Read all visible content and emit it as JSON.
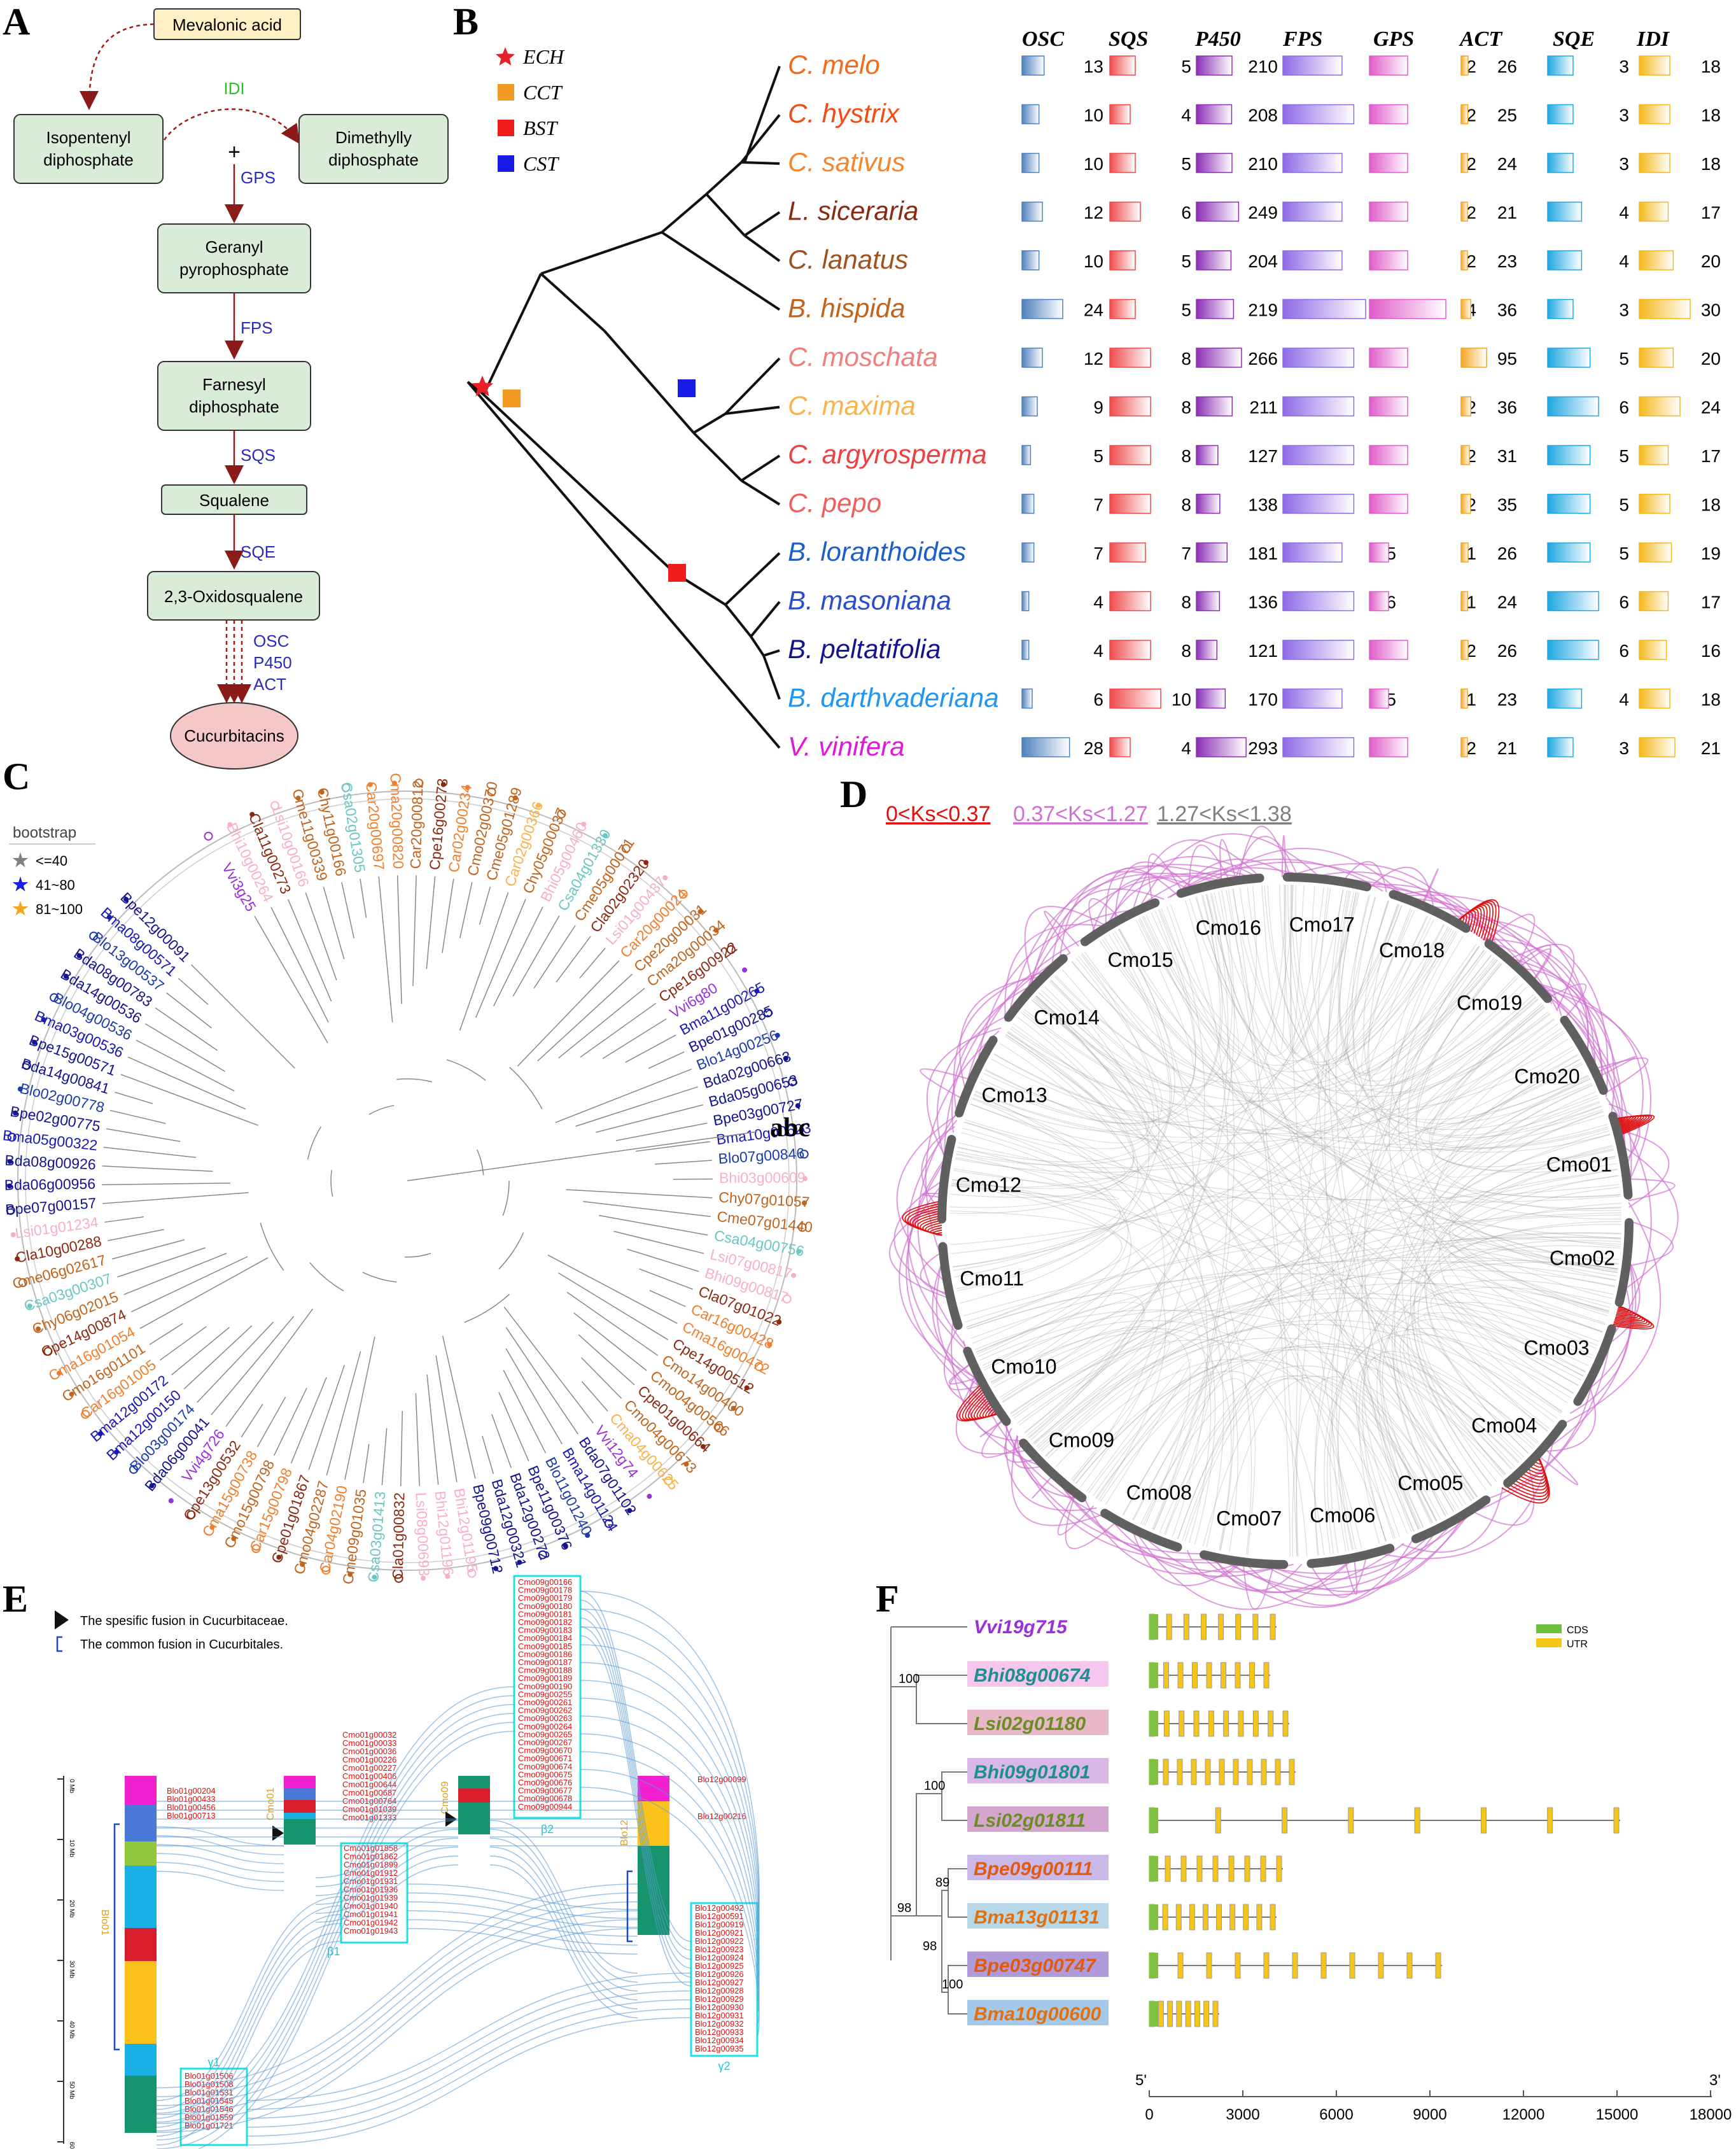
{
  "panels": {
    "A": {
      "letter": "A",
      "start": "Mevalonic acid",
      "ipp": "Isopentenyl diphosphate",
      "ipp_lines": [
        "Isopentenyl",
        "diphosphate"
      ],
      "dmapp_lines": [
        "Dimethylly",
        "diphosphate"
      ],
      "idi": "IDI",
      "plus": "+",
      "gps": "GPS",
      "gpp_lines": [
        "Geranyl",
        "pyrophosphate"
      ],
      "fps": "FPS",
      "fpp_lines": [
        "Farnesyl",
        "diphosphate"
      ],
      "sqs": "SQS",
      "squalene": "Squalene",
      "sqe": "SQE",
      "oxido": "2,3-Oxidosqualene",
      "enzymes_last": [
        "OSC",
        "P450",
        "ACT"
      ],
      "end": "Cucurbitacins"
    },
    "B": {
      "letter": "B",
      "legend": [
        {
          "label": "ECH",
          "color": "#e8202a",
          "shape": "star"
        },
        {
          "label": "CCT",
          "color": "#f39a24",
          "shape": "square"
        },
        {
          "label": "BST",
          "color": "#ee1c1c",
          "shape": "square"
        },
        {
          "label": "CST",
          "color": "#1a1ae6",
          "shape": "square"
        }
      ],
      "columns": [
        "OSC",
        "SQS",
        "P450",
        "FPS",
        "GPS",
        "ACT",
        "SQE",
        "IDI"
      ],
      "column_colors": [
        "#4f81bd",
        "#f04a4a",
        "#8b2fb5",
        "#8d6ae6",
        "#e05bc9",
        "#f5a623",
        "#1ea7e1",
        "#f5b81c"
      ],
      "species": [
        {
          "name": "C. melo",
          "color": "#f26a1b",
          "values": [
            13,
            5,
            210,
            5,
            2,
            26,
            3,
            18
          ]
        },
        {
          "name": "C. hystrix",
          "color": "#f04e16",
          "values": [
            10,
            4,
            208,
            6,
            2,
            25,
            3,
            18
          ]
        },
        {
          "name": "C. sativus",
          "color": "#f4862b",
          "values": [
            10,
            5,
            210,
            5,
            2,
            24,
            3,
            18
          ]
        },
        {
          "name": "L. siceraria",
          "color": "#8b2a12",
          "values": [
            12,
            6,
            249,
            5,
            2,
            21,
            4,
            17
          ]
        },
        {
          "name": "C. lanatus",
          "color": "#a0521c",
          "values": [
            10,
            5,
            204,
            5,
            2,
            23,
            4,
            20
          ]
        },
        {
          "name": "B. hispida",
          "color": "#c0641e",
          "values": [
            24,
            5,
            219,
            7,
            4,
            36,
            3,
            30
          ]
        },
        {
          "name": "C. moschata",
          "color": "#f08080",
          "values": [
            12,
            8,
            266,
            6,
            2,
            95,
            5,
            20
          ]
        },
        {
          "name": "C. maxima",
          "color": "#f9b24c",
          "values": [
            9,
            8,
            211,
            6,
            2,
            36,
            6,
            24
          ]
        },
        {
          "name": "C. argyrosperma",
          "color": "#ee4040",
          "values": [
            5,
            8,
            127,
            6,
            2,
            31,
            5,
            17
          ]
        },
        {
          "name": "C. pepo",
          "color": "#f05f5f",
          "values": [
            7,
            8,
            138,
            6,
            2,
            35,
            5,
            18
          ]
        },
        {
          "name": "B. loranthoides",
          "color": "#1c5fc8",
          "values": [
            7,
            7,
            181,
            5,
            1,
            26,
            5,
            19
          ]
        },
        {
          "name": "B. masoniana",
          "color": "#2a4ed0",
          "values": [
            4,
            8,
            136,
            6,
            1,
            24,
            6,
            17
          ]
        },
        {
          "name": "B. peltatifolia",
          "color": "#14148e",
          "values": [
            4,
            8,
            121,
            6,
            2,
            26,
            6,
            16
          ]
        },
        {
          "name": "B. darthvaderiana",
          "color": "#2196f3",
          "values": [
            6,
            10,
            170,
            5,
            1,
            23,
            4,
            18
          ]
        },
        {
          "name": "V. vinifera",
          "color": "#e019d8",
          "values": [
            28,
            4,
            293,
            6,
            2,
            21,
            3,
            21
          ]
        }
      ]
    },
    "C": {
      "letter": "C",
      "legend_title": "bootstrap",
      "legend": [
        {
          "label": "<=40",
          "color": "#808080"
        },
        {
          "label": "41~80",
          "color": "#1a1ae6"
        },
        {
          "label": "81~100",
          "color": "#f5a623"
        }
      ],
      "corner_label": "abc",
      "genes": [
        {
          "id": "Vvi3g25",
          "color": "#9b30d9"
        },
        {
          "id": "Bhi10g00264",
          "color": "#f7b0c8"
        },
        {
          "id": "Cla11g00273",
          "color": "#8b2a12"
        },
        {
          "id": "Lsi10g00166",
          "color": "#f7b0c8"
        },
        {
          "id": "Cme11g00339",
          "color": "#c0641e"
        },
        {
          "id": "Chy11g00166",
          "color": "#c0641e"
        },
        {
          "id": "Csa02g01305",
          "color": "#6cc6c6"
        },
        {
          "id": "Car20g00697",
          "color": "#f08030"
        },
        {
          "id": "Cma20g00820",
          "color": "#f08030"
        },
        {
          "id": "Car20g00812",
          "color": "#c0641e"
        },
        {
          "id": "Cpe16g00273",
          "color": "#8b2a12"
        },
        {
          "id": "Car02g00234",
          "color": "#f08030"
        },
        {
          "id": "Cmo02g00370",
          "color": "#c0641e"
        },
        {
          "id": "Cme05g01289",
          "color": "#c0641e"
        },
        {
          "id": "Car02g00366",
          "color": "#f9b24c"
        },
        {
          "id": "Chy05g00037",
          "color": "#c0641e"
        },
        {
          "id": "Bhi05g00460",
          "color": "#f7b0c8"
        },
        {
          "id": "Csa04g01330",
          "color": "#6cc6c6"
        },
        {
          "id": "Cme05g00071",
          "color": "#c0641e"
        },
        {
          "id": "Cla02g02320",
          "color": "#8b2a12"
        },
        {
          "id": "Lsi01g00437",
          "color": "#f7b0c8"
        },
        {
          "id": "Car20g00024",
          "color": "#f08030"
        },
        {
          "id": "Cpe20g00031",
          "color": "#c0641e"
        },
        {
          "id": "Cma20g00034",
          "color": "#c0641e"
        },
        {
          "id": "Cpe16g00922",
          "color": "#8b2a12"
        },
        {
          "id": "Vvi6g80",
          "color": "#9b30d9"
        },
        {
          "id": "Bma11g00265",
          "color": "#1a1ab0"
        },
        {
          "id": "Bpe01g00285",
          "color": "#14148e"
        },
        {
          "id": "Blo14g00256",
          "color": "#1c3ca8"
        },
        {
          "id": "Bda02g00663",
          "color": "#14148e"
        },
        {
          "id": "Bda05g00653",
          "color": "#14148e"
        },
        {
          "id": "Bpe03g00727",
          "color": "#14148e"
        },
        {
          "id": "Bma10g00623",
          "color": "#1a1ab0"
        },
        {
          "id": "Blo07g00846",
          "color": "#1c3ca8"
        },
        {
          "id": "Bhi03g00609",
          "color": "#f7b0c8"
        },
        {
          "id": "Chy07g01057",
          "color": "#c0641e"
        },
        {
          "id": "Cme07g01440",
          "color": "#c0641e"
        },
        {
          "id": "Csa04g00756",
          "color": "#6cc6c6"
        },
        {
          "id": "Lsi07g00817",
          "color": "#f7b0c8"
        },
        {
          "id": "Bhi09g00817",
          "color": "#f7b0c8"
        },
        {
          "id": "Cla07g01022",
          "color": "#8b2a12"
        },
        {
          "id": "Car16g00428",
          "color": "#f08030"
        },
        {
          "id": "Cma16g00472",
          "color": "#f08030"
        },
        {
          "id": "Cpe14g00512",
          "color": "#8b2a12"
        },
        {
          "id": "Cmo14g00400",
          "color": "#c0641e"
        },
        {
          "id": "Cmo04g00566",
          "color": "#c0641e"
        },
        {
          "id": "Cpe01g00664",
          "color": "#8b2a12"
        },
        {
          "id": "Cmo04g00673",
          "color": "#c0641e"
        },
        {
          "id": "Cma04g00625",
          "color": "#f9b24c"
        },
        {
          "id": "Vvi12g74",
          "color": "#9b30d9"
        },
        {
          "id": "Bda07g01102",
          "color": "#14148e"
        },
        {
          "id": "Bma14g01124",
          "color": "#1a1ab0"
        },
        {
          "id": "Blo11g01240",
          "color": "#1c3ca8"
        },
        {
          "id": "Bpe11g00376",
          "color": "#14148e"
        },
        {
          "id": "Bda12g00272",
          "color": "#14148e"
        },
        {
          "id": "Bda12g00321",
          "color": "#14148e"
        },
        {
          "id": "Bpe09g00712",
          "color": "#14148e"
        },
        {
          "id": "Bhi12g01195",
          "color": "#f7b0c8"
        },
        {
          "id": "Bhi12g01196",
          "color": "#f7b0c8"
        },
        {
          "id": "Lsi08g00693",
          "color": "#f7b0c8"
        },
        {
          "id": "Cla01g00832",
          "color": "#8b2a12"
        },
        {
          "id": "Csa03g01413",
          "color": "#6cc6c6"
        },
        {
          "id": "Cme09g01035",
          "color": "#c0641e"
        },
        {
          "id": "Car04g02190",
          "color": "#f08030"
        },
        {
          "id": "Cmo04g02287",
          "color": "#c0641e"
        },
        {
          "id": "Cpe01g01867",
          "color": "#8b2a12"
        },
        {
          "id": "Car15g00798",
          "color": "#f08030"
        },
        {
          "id": "Cmo15g00798",
          "color": "#c0641e"
        },
        {
          "id": "Cma15g00738",
          "color": "#f08030"
        },
        {
          "id": "Cpe13g00532",
          "color": "#8b2a12"
        },
        {
          "id": "Vvi4g726",
          "color": "#9b30d9"
        },
        {
          "id": "Bda06g00041",
          "color": "#14148e"
        },
        {
          "id": "Blo03g00174",
          "color": "#1c3ca8"
        },
        {
          "id": "Bma12g00150",
          "color": "#1a1ab0"
        },
        {
          "id": "Bma12g00172",
          "color": "#1a1ab0"
        },
        {
          "id": "Car16g01005",
          "color": "#f08030"
        },
        {
          "id": "Cmo16g01101",
          "color": "#c0641e"
        },
        {
          "id": "Cma16g01054",
          "color": "#f08030"
        },
        {
          "id": "Cpe14g00874",
          "color": "#8b2a12"
        },
        {
          "id": "Chy06g02015",
          "color": "#c0641e"
        },
        {
          "id": "Csa03g00307",
          "color": "#6cc6c6"
        },
        {
          "id": "Cme06g02617",
          "color": "#c0641e"
        },
        {
          "id": "Cla10g00288",
          "color": "#8b2a12"
        },
        {
          "id": "Lsi01g01234",
          "color": "#f7b0c8"
        },
        {
          "id": "Bpe07g00157",
          "color": "#14148e"
        },
        {
          "id": "Bda06g00956",
          "color": "#14148e"
        },
        {
          "id": "Bda08g00926",
          "color": "#14148e"
        },
        {
          "id": "Bma05g00322",
          "color": "#1a1ab0"
        },
        {
          "id": "Bpe02g00775",
          "color": "#14148e"
        },
        {
          "id": "Blo02g00778",
          "color": "#1c3ca8"
        },
        {
          "id": "Bda14g00841",
          "color": "#14148e"
        },
        {
          "id": "Bpe15g00571",
          "color": "#14148e"
        },
        {
          "id": "Bma03g00536",
          "color": "#1a1ab0"
        },
        {
          "id": "Blo04g00536",
          "color": "#1c3ca8"
        },
        {
          "id": "Bda14g00536",
          "color": "#14148e"
        },
        {
          "id": "Bda08g00783",
          "color": "#14148e"
        },
        {
          "id": "Blo13g00537",
          "color": "#1c3ca8"
        },
        {
          "id": "Bma08g00571",
          "color": "#1a1ab0"
        },
        {
          "id": "Bpe12g00091",
          "color": "#14148e"
        }
      ]
    },
    "D": {
      "letter": "D",
      "ks_labels": [
        {
          "label": "0<Ks<0.37",
          "color": "#e01010"
        },
        {
          "label": "0.37<Ks<1.27",
          "color": "#d070d0"
        },
        {
          "label": "1.27<Ks<1.38",
          "color": "#808080"
        }
      ],
      "chromosomes": [
        "Cmo01",
        "Cmo02",
        "Cmo03",
        "Cmo04",
        "Cmo05",
        "Cmo06",
        "Cmo07",
        "Cmo08",
        "Cmo09",
        "Cmo10",
        "Cmo11",
        "Cmo12",
        "Cmo13",
        "Cmo14",
        "Cmo15",
        "Cmo16",
        "Cmo17",
        "Cmo18",
        "Cmo19",
        "Cmo20"
      ]
    },
    "E": {
      "letter": "E",
      "legend": [
        "The spesific fusion in Cucurbitaceae.",
        "The common fusion in Cucurbitales."
      ],
      "chr_labels": {
        "blo01": "Blo01",
        "blo12": "Blo12",
        "cmo01": "Cmo01",
        "cmo09": "Cmo09"
      },
      "scale": [
        "0 Mb",
        "10 Mb",
        "20 Mb",
        "30 Mb",
        "40 Mb",
        "50 Mb",
        "60 Mb"
      ],
      "box_labels": {
        "beta1": "β1",
        "beta2": "β2",
        "gamma1": "γ1",
        "gamma2": "γ2"
      },
      "blo01_genes_top": [
        "Blo01g00204",
        "Blo01g00433",
        "Blo01g00456",
        "Blo01g00713"
      ],
      "gamma1_genes": [
        "Blo01g01506",
        "Blo01g01508",
        "Blo01g01531",
        "Blo01g01545",
        "Blo01g01546",
        "Blo01g01559",
        "Blo01g01721"
      ],
      "cmo01_genes_top": [
        "Cmo01g00032",
        "Cmo01g00033",
        "Cmo01g00036",
        "Cmo01g00226",
        "Cmo01g00227",
        "Cmo01g00406",
        "Cmo01g00644",
        "Cmo01g00687",
        "Cmo01g00764",
        "Cmo01g01039",
        "Cmo01g01333"
      ],
      "beta1_genes": [
        "Cmo01g01858",
        "Cmo01g01862",
        "Cmo01g01899",
        "Cmo01g01912",
        "Cmo01g01931",
        "Cmo01g01936",
        "Cmo01g01939",
        "Cmo01g01940",
        "Cmo01g01941",
        "Cmo01g01942",
        "Cmo01g01943"
      ],
      "beta2_genes": [
        "Cmo09g00166",
        "Cmo09g00178",
        "Cmo09g00179",
        "Cmo09g00180",
        "Cmo09g00181",
        "Cmo09g00182",
        "Cmo09g00183",
        "Cmo09g00184",
        "Cmo09g00185",
        "Cmo09g00186",
        "Cmo09g00187",
        "Cmo09g00188",
        "Cmo09g00189",
        "Cmo09g00190",
        "Cmo09g00255",
        "Cmo09g00261",
        "Cmo09g00262",
        "Cmo09g00263",
        "Cmo09g00264",
        "Cmo09g00265",
        "Cmo09g00267",
        "Cmo09g00670",
        "Cmo09g00671",
        "Cmo09g00674",
        "Cmo09g00675",
        "Cmo09g00676",
        "Cmo09g00677",
        "Cmo09g00678",
        "Cmo09g00944"
      ],
      "blo12_genes_top": [
        "Blo12g00099",
        "Blo12g00216"
      ],
      "gamma2_genes": [
        "Blo12g00492",
        "Blo12g00591",
        "Blo12g00919",
        "Blo12g00921",
        "Blo12g00922",
        "Blo12g00923",
        "Blo12g00924",
        "Blo12g00925",
        "Blo12g00926",
        "Blo12g00927",
        "Blo12g00928",
        "Blo12g00929",
        "Blo12g00930",
        "Blo12g00931",
        "Blo12g00932",
        "Blo12g00933",
        "Blo12g00934",
        "Blo12g00935"
      ]
    },
    "F": {
      "letter": "F",
      "legend": [
        "CDS",
        "UTR"
      ],
      "genes": [
        {
          "id": "Vvi19g715",
          "color": "#9b30d9",
          "bg": "#ffffff"
        },
        {
          "id": "Bhi08g00674",
          "color": "#1e8f8f",
          "bg": "#f7c6ee"
        },
        {
          "id": "Lsi02g01180",
          "color": "#6b8e23",
          "bg": "#e8b8c8"
        },
        {
          "id": "Bhi09g01801",
          "color": "#1e8f8f",
          "bg": "#d9b8e8"
        },
        {
          "id": "Lsi02g01811",
          "color": "#6b8e23",
          "bg": "#d4a6cf"
        },
        {
          "id": "Bpe09g00111",
          "color": "#e05a10",
          "bg": "#c9b8e8"
        },
        {
          "id": "Bma13g01131",
          "color": "#e07010",
          "bg": "#b8d8e8"
        },
        {
          "id": "Bpe03g00747",
          "color": "#e05a10",
          "bg": "#b09ad9"
        },
        {
          "id": "Bma10g00600",
          "color": "#e07010",
          "bg": "#a6c8e8"
        }
      ],
      "bootstrap": [
        "100",
        "100",
        "98",
        "89",
        "98",
        "100"
      ],
      "axis_ticks": [
        "0",
        "3000",
        "6000",
        "9000",
        "12000",
        "15000",
        "18000"
      ],
      "axis_ends": [
        "5'",
        "3'"
      ]
    }
  }
}
